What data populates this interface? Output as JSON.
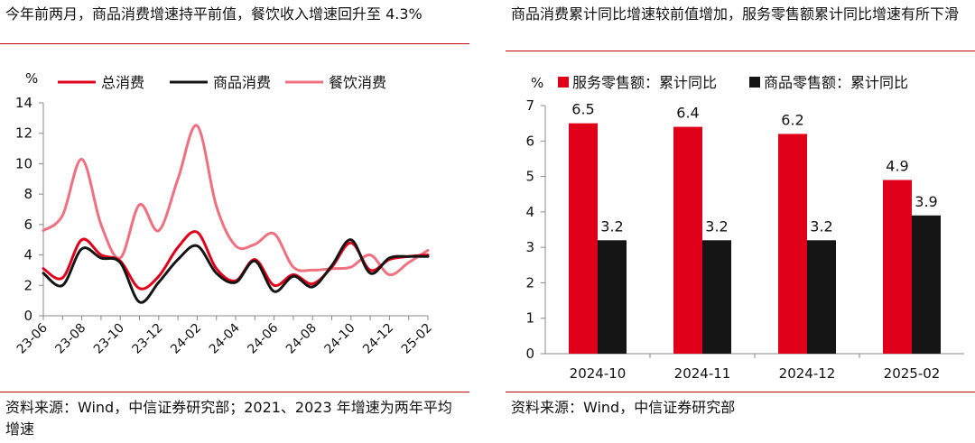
{
  "left": {
    "title": "今年前两月，商品消费增速持平前值，餐饮收入增速回升至 4.3%",
    "source": "资料来源：Wind，中信证券研究部；2021、2023 年增速为两年平均增速"
  },
  "right": {
    "title": "商品消费累计同比增速较前值增加，服务零售额累计同比增速有所下滑",
    "source": "资料来源：Wind，中信证券研究部"
  },
  "colors": {
    "red": "#e00019",
    "black": "#151515",
    "pink": "#f0707f",
    "rule": "#c0000a"
  },
  "chart_data": [
    {
      "type": "line",
      "unit_label": "%",
      "ylim": [
        0,
        14
      ],
      "yticks": [
        0,
        2,
        4,
        6,
        8,
        10,
        12,
        14
      ],
      "xticks": [
        "23-06",
        "23-08",
        "23-10",
        "23-12",
        "24-02",
        "24-04",
        "24-06",
        "24-08",
        "24-10",
        "24-12",
        "25-02"
      ],
      "x": [
        "23-06",
        "23-07",
        "23-08",
        "23-09",
        "23-10",
        "23-11",
        "23-12",
        "24-01",
        "24-02",
        "24-03",
        "24-04",
        "24-05",
        "24-06",
        "24-07",
        "24-08",
        "24-09",
        "24-10",
        "24-11",
        "24-12",
        "25-01",
        "25-02"
      ],
      "legend_position": "top",
      "series": [
        {
          "name": "总消费",
          "color": "#e00019",
          "values": [
            3.1,
            2.5,
            5.0,
            4.0,
            3.6,
            1.8,
            2.6,
            4.5,
            5.5,
            3.1,
            2.3,
            3.7,
            2.0,
            2.7,
            2.1,
            3.2,
            4.8,
            3.0,
            3.7,
            3.9,
            4.0
          ]
        },
        {
          "name": "商品消费",
          "color": "#151515",
          "values": [
            2.8,
            2.0,
            4.4,
            3.8,
            3.5,
            0.9,
            2.2,
            3.7,
            4.6,
            2.8,
            2.2,
            3.6,
            1.6,
            2.6,
            1.9,
            3.3,
            5.0,
            2.8,
            3.8,
            3.9,
            3.9
          ]
        },
        {
          "name": "餐饮消费",
          "color": "#f0707f",
          "values": [
            5.6,
            6.6,
            10.3,
            6.0,
            3.8,
            7.3,
            5.6,
            9.0,
            12.5,
            7.2,
            4.6,
            4.7,
            5.4,
            3.2,
            3.0,
            3.1,
            3.2,
            4.0,
            2.7,
            3.5,
            4.3
          ]
        }
      ]
    },
    {
      "type": "bar",
      "unit_label": "%",
      "ylim": [
        0,
        7
      ],
      "yticks": [
        0,
        1,
        2,
        3,
        4,
        5,
        6,
        7
      ],
      "categories": [
        "2024-10",
        "2024-11",
        "2024-12",
        "2025-02"
      ],
      "legend_position": "top",
      "series": [
        {
          "name": "服务零售额：累计同比",
          "color": "#e00019",
          "values": [
            6.5,
            6.4,
            6.2,
            4.9
          ]
        },
        {
          "name": "商品零售额：累计同比",
          "color": "#151515",
          "values": [
            3.2,
            3.2,
            3.2,
            3.9
          ]
        }
      ]
    }
  ]
}
